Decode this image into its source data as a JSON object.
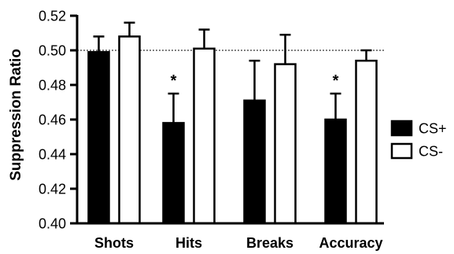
{
  "chart_data": {
    "type": "bar",
    "title": "",
    "xlabel": "",
    "ylabel": "Suppression Ratio",
    "ylim": [
      0.4,
      0.52
    ],
    "yticks": [
      "0.40",
      "0.42",
      "0.44",
      "0.46",
      "0.48",
      "0.50",
      "0.52"
    ],
    "categories": [
      "Shots",
      "Hits",
      "Breaks",
      "Accuracy"
    ],
    "series": [
      {
        "name": "CS+",
        "fill": "#000000",
        "values": [
          0.499,
          0.458,
          0.471,
          0.46
        ],
        "errors": [
          0.009,
          0.017,
          0.023,
          0.015
        ]
      },
      {
        "name": "CS-",
        "fill": "#ffffff",
        "values": [
          0.508,
          0.501,
          0.492,
          0.494
        ],
        "errors": [
          0.008,
          0.011,
          0.017,
          0.006
        ]
      }
    ],
    "reference_line": 0.5,
    "significance": [
      {
        "category_index": 1,
        "series_index": 0,
        "label": "*"
      },
      {
        "category_index": 3,
        "series_index": 0,
        "label": "*"
      }
    ],
    "legend": {
      "placement": "right",
      "entries": [
        "CS+",
        "CS-"
      ]
    },
    "grid": false
  }
}
